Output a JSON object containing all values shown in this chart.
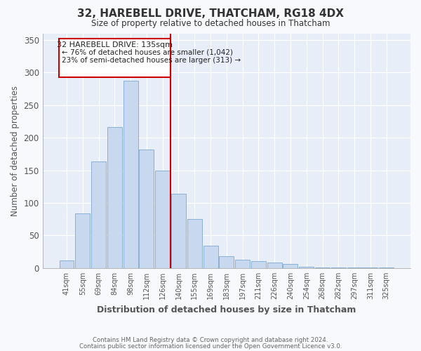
{
  "title": "32, HAREBELL DRIVE, THATCHAM, RG18 4DX",
  "subtitle": "Size of property relative to detached houses in Thatcham",
  "xlabel": "Distribution of detached houses by size in Thatcham",
  "ylabel": "Number of detached properties",
  "bar_labels": [
    "41sqm",
    "55sqm",
    "69sqm",
    "84sqm",
    "98sqm",
    "112sqm",
    "126sqm",
    "140sqm",
    "155sqm",
    "169sqm",
    "183sqm",
    "197sqm",
    "211sqm",
    "226sqm",
    "240sqm",
    "254sqm",
    "268sqm",
    "282sqm",
    "297sqm",
    "311sqm",
    "325sqm"
  ],
  "bar_values": [
    12,
    84,
    164,
    216,
    287,
    182,
    150,
    114,
    75,
    34,
    18,
    13,
    11,
    9,
    6,
    2,
    1,
    1,
    1,
    1,
    1
  ],
  "bar_color": "#c8d8ee",
  "bar_edge_color": "#8ab0d4",
  "vline_color": "#cc0000",
  "annotation_box_title": "32 HAREBELL DRIVE: 135sqm",
  "annotation_line1": "← 76% of detached houses are smaller (1,042)",
  "annotation_line2": "23% of semi-detached houses are larger (313) →",
  "ylim": [
    0,
    360
  ],
  "yticks": [
    0,
    50,
    100,
    150,
    200,
    250,
    300,
    350
  ],
  "footer1": "Contains HM Land Registry data © Crown copyright and database right 2024.",
  "footer2": "Contains public sector information licensed under the Open Government Licence v3.0.",
  "plot_bg_color": "#e8eef8",
  "fig_bg_color": "#f8f9fc",
  "grid_color": "#ffffff",
  "title_color": "#333333",
  "axis_color": "#555555"
}
